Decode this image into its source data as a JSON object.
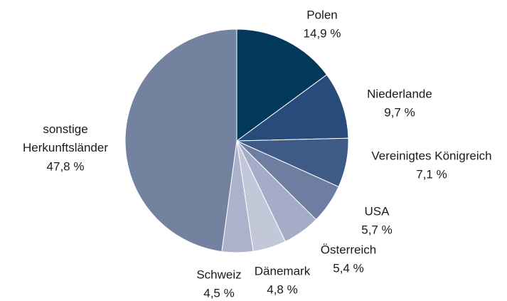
{
  "chart_data": {
    "type": "pie",
    "categories": [
      "Polen",
      "Niederlande",
      "Vereinigtes Königreich",
      "USA",
      "Österreich",
      "Dänemark",
      "Schweiz",
      "sonstige Herkunftsländer"
    ],
    "values": [
      14.9,
      9.7,
      7.1,
      5.7,
      5.4,
      4.8,
      4.5,
      47.8
    ],
    "value_labels": [
      "14,9 %",
      "9,7 %",
      "7,1 %",
      "5,7 %",
      "5,4 %",
      "4,8 %",
      "4,5 %",
      "47,8 %"
    ],
    "colors": [
      "#02385a",
      "#274b7a",
      "#3e5b87",
      "#6d7ea0",
      "#a4acc7",
      "#c3c8d8",
      "#acb2cb",
      "#73829f"
    ]
  }
}
